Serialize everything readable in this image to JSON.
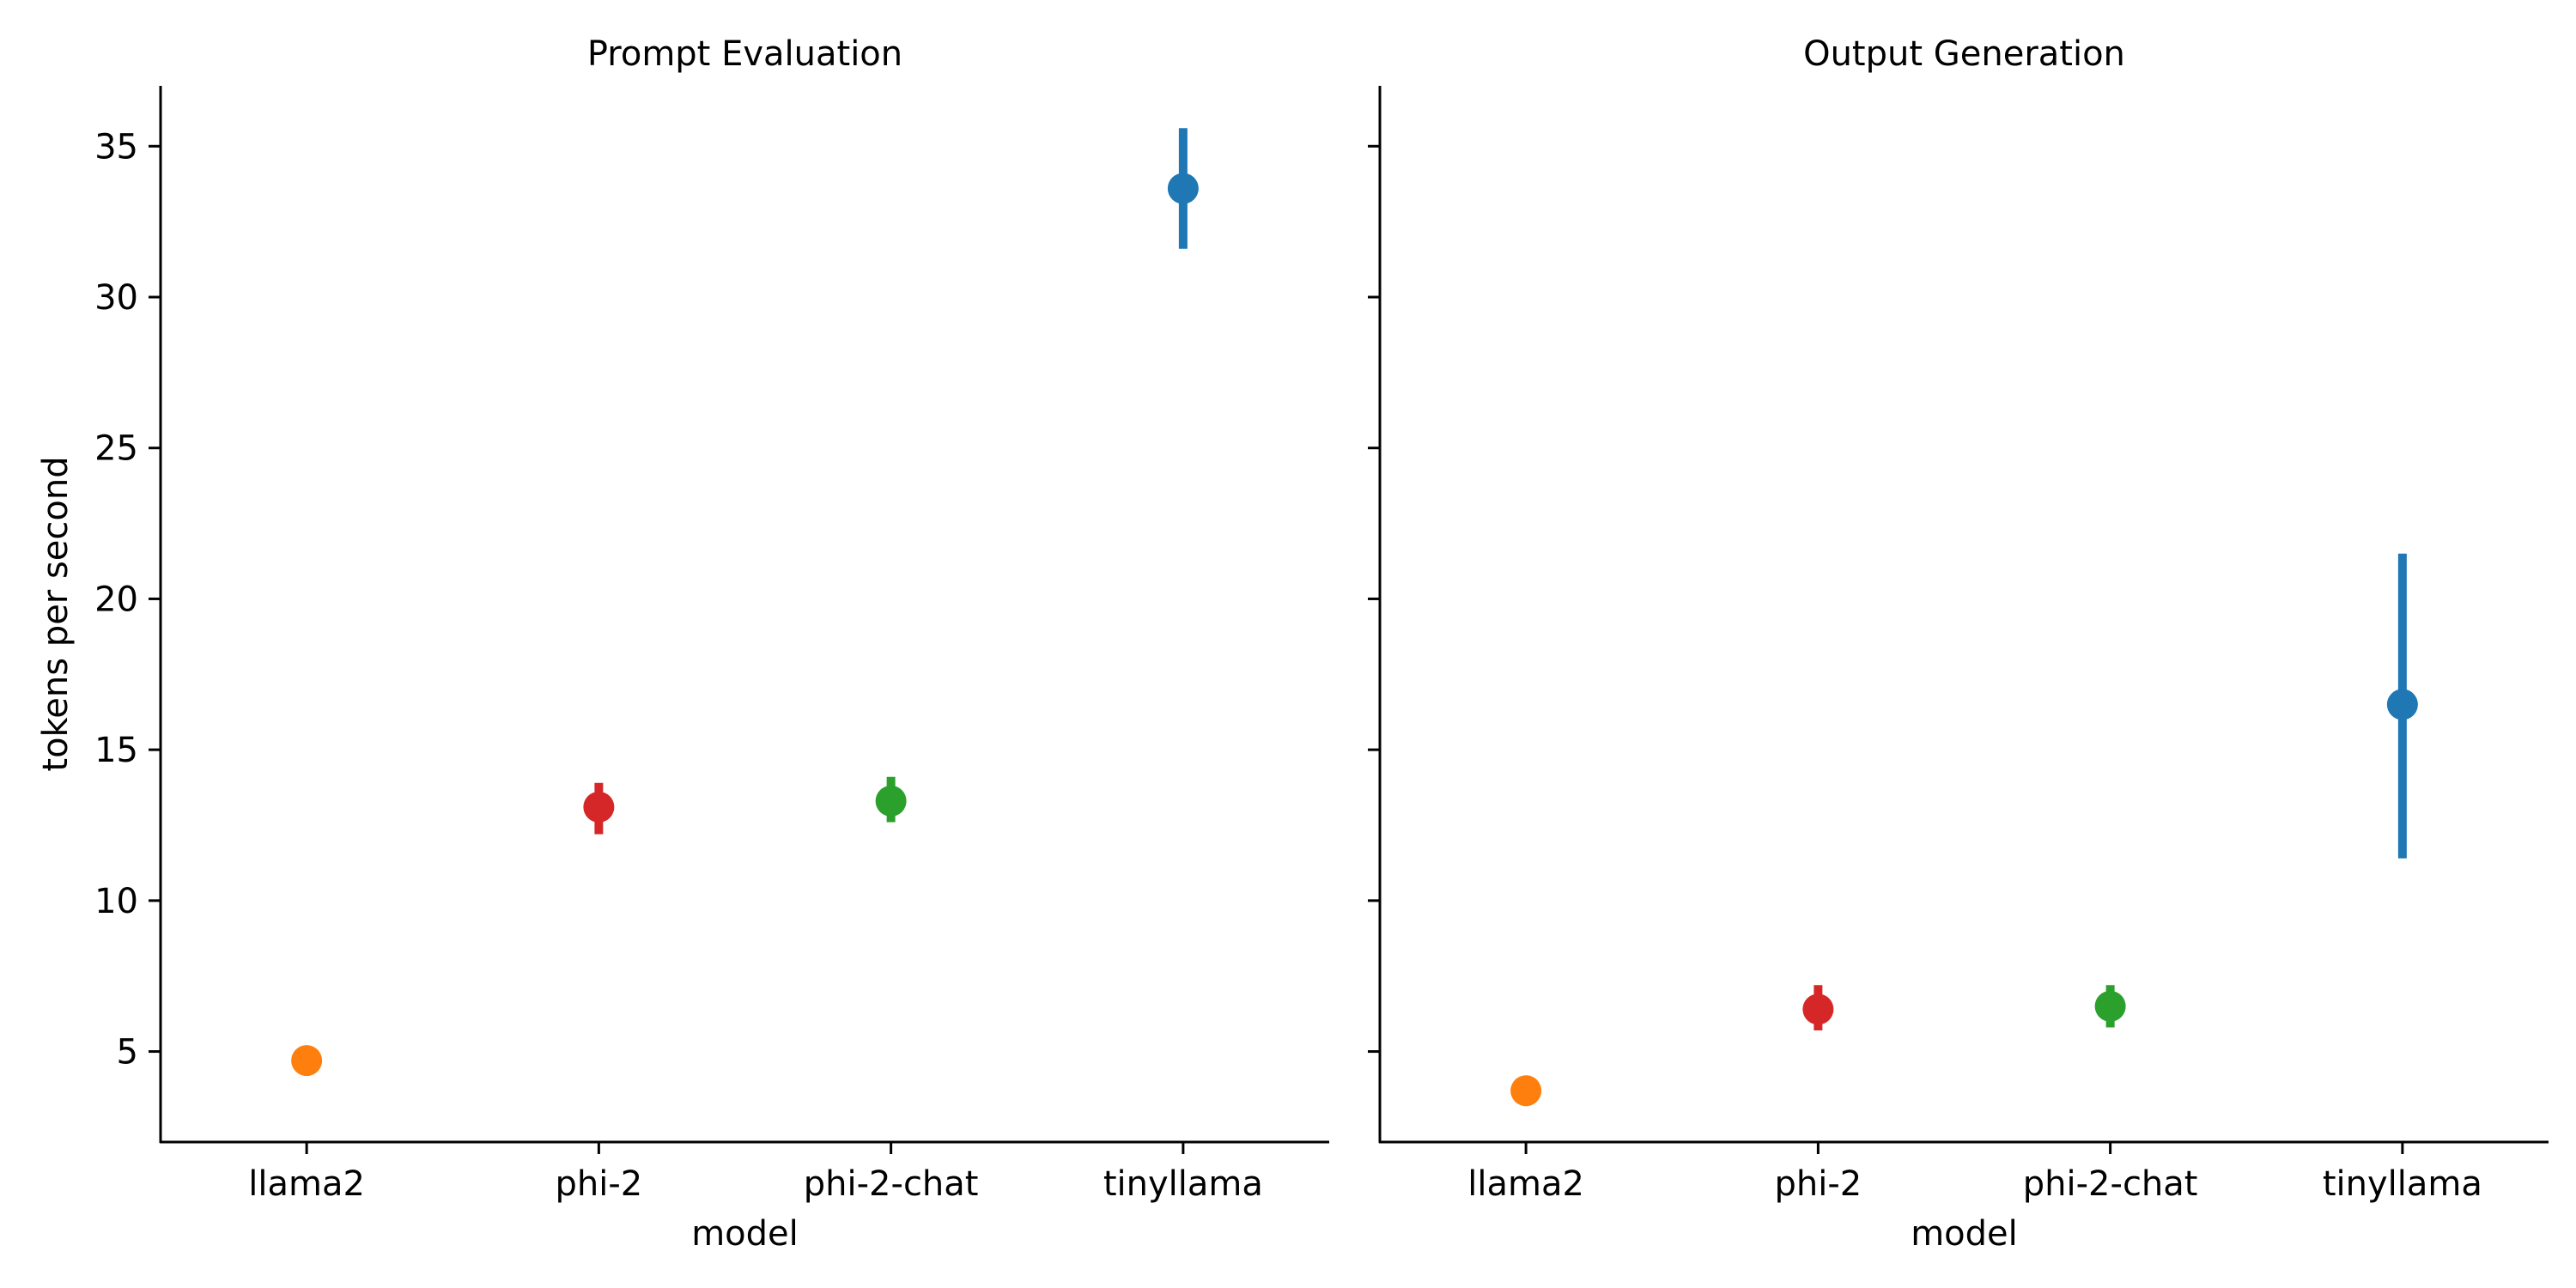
{
  "chart_data": {
    "type": "scatter",
    "style": "point plot with error bars (faceted)",
    "shared_y": true,
    "ylabel": "tokens per second",
    "xlabel": "model",
    "categories": [
      "llama2",
      "phi-2",
      "phi-2-chat",
      "tinyllama"
    ],
    "colors": {
      "llama2": "#ff7f0e",
      "phi-2": "#d62728",
      "phi-2-chat": "#2ca02c",
      "tinyllama": "#1f77b4"
    },
    "ylim": [
      2,
      37
    ],
    "yticks": [
      5,
      10,
      15,
      20,
      25,
      30,
      35
    ],
    "grid": false,
    "legend": "none",
    "panels": [
      {
        "title": "Prompt Evaluation",
        "points": [
          {
            "category": "llama2",
            "value": 4.7,
            "low": 4.7,
            "high": 4.7
          },
          {
            "category": "phi-2",
            "value": 13.1,
            "low": 12.2,
            "high": 13.9
          },
          {
            "category": "phi-2-chat",
            "value": 13.3,
            "low": 12.6,
            "high": 14.1
          },
          {
            "category": "tinyllama",
            "value": 33.6,
            "low": 31.6,
            "high": 35.6
          }
        ]
      },
      {
        "title": "Output Generation",
        "points": [
          {
            "category": "llama2",
            "value": 3.7,
            "low": 3.7,
            "high": 3.7
          },
          {
            "category": "phi-2",
            "value": 6.4,
            "low": 5.7,
            "high": 7.2
          },
          {
            "category": "phi-2-chat",
            "value": 6.5,
            "low": 5.8,
            "high": 7.2
          },
          {
            "category": "tinyllama",
            "value": 16.5,
            "low": 11.4,
            "high": 21.5
          }
        ]
      }
    ]
  }
}
